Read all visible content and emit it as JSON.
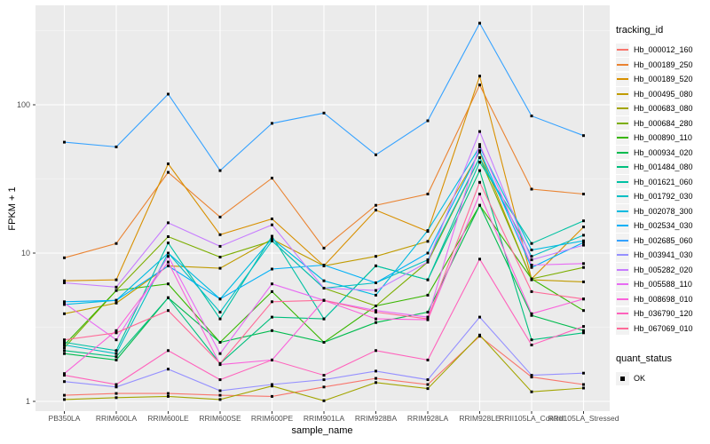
{
  "chart_data": {
    "type": "line",
    "title": "",
    "xlabel": "sample_name",
    "ylabel": "FPKM + 1",
    "y_scale": "log10",
    "y_ticks": [
      1,
      10,
      100
    ],
    "y_minor_ticks": [
      3.162,
      31.62,
      316.2
    ],
    "ylim": [
      0.87,
      440
    ],
    "grid": "white major and minor gridlines on grey panel",
    "legend_position": "right",
    "point_marker": "black-square",
    "categories": [
      "PB350LA",
      "RRIM600LA",
      "RRIM600LE",
      "RRIM600SE",
      "RRIM600PE",
      "RRIM901LA",
      "RRIM928BA",
      "RRIM928LA",
      "RRIM928LE",
      "RRII105LA_Control",
      "RRII105LA_Stressed"
    ],
    "series": [
      {
        "name": "Hb_000012_160",
        "color": "#F8766D",
        "values": [
          1.1,
          1.13,
          1.13,
          1.1,
          1.08,
          1.25,
          1.43,
          1.3,
          2.75,
          1.46,
          1.3
        ]
      },
      {
        "name": "Hb_000189_250",
        "color": "#EA8331",
        "values": [
          9.3,
          11.6,
          35,
          17.5,
          32,
          10.8,
          21,
          25,
          136,
          27,
          25
        ]
      },
      {
        "name": "Hb_000189_520",
        "color": "#D89000",
        "values": [
          6.5,
          6.6,
          40,
          13.3,
          17,
          8.2,
          19.5,
          14,
          156,
          6.7,
          15
        ]
      },
      {
        "name": "Hb_000495_080",
        "color": "#C09B00",
        "values": [
          3.9,
          4.6,
          8.2,
          7.9,
          12.4,
          8.2,
          9.5,
          12,
          48,
          6.6,
          6.4
        ]
      },
      {
        "name": "Hb_000683_080",
        "color": "#A3A500",
        "values": [
          1.03,
          1.06,
          1.08,
          1.03,
          1.27,
          1.01,
          1.34,
          1.22,
          2.8,
          1.16,
          1.23
        ]
      },
      {
        "name": "Hb_000684_280",
        "color": "#7CAE00",
        "values": [
          2.3,
          5.6,
          12.9,
          9.4,
          12.1,
          5.8,
          4.4,
          8.7,
          44,
          6.7,
          8.0
        ]
      },
      {
        "name": "Hb_000890_110",
        "color": "#39B600",
        "values": [
          2.4,
          5.6,
          6.2,
          2.5,
          5.5,
          2.5,
          4.4,
          5.2,
          21,
          6.7,
          4.1
        ]
      },
      {
        "name": "Hb_000934_020",
        "color": "#00BB4E",
        "values": [
          2.1,
          1.9,
          5.0,
          2.5,
          3.0,
          2.5,
          3.4,
          4.0,
          21,
          3.8,
          3.0
        ]
      },
      {
        "name": "Hb_001484_080",
        "color": "#00BF7D",
        "values": [
          2.2,
          2.0,
          5.0,
          1.8,
          3.7,
          3.6,
          8.2,
          6.6,
          36,
          2.6,
          2.9
        ]
      },
      {
        "name": "Hb_001621_060",
        "color": "#00C1A3",
        "values": [
          2.5,
          2.2,
          11.7,
          3.6,
          13,
          3.6,
          8.2,
          6.6,
          41,
          11.6,
          16.5
        ]
      },
      {
        "name": "Hb_001792_030",
        "color": "#00BFC4",
        "values": [
          2.4,
          2.1,
          10,
          4.0,
          12.1,
          5.8,
          6.3,
          9.0,
          44,
          9.5,
          13.2
        ]
      },
      {
        "name": "Hb_002078_300",
        "color": "#00BAE0",
        "values": [
          4.5,
          4.8,
          10,
          4.9,
          12.5,
          6.5,
          5.2,
          14.2,
          52,
          10.5,
          12.1
        ]
      },
      {
        "name": "Hb_002534_030",
        "color": "#00B0F6",
        "values": [
          4.7,
          4.8,
          8.2,
          4.9,
          7.8,
          8.3,
          6.3,
          10,
          49,
          8.0,
          11.8
        ]
      },
      {
        "name": "Hb_002685_060",
        "color": "#35A2FF",
        "values": [
          56,
          52,
          118,
          36,
          75,
          88,
          46,
          78,
          355,
          84,
          62
        ]
      },
      {
        "name": "Hb_003941_030",
        "color": "#9590FF",
        "values": [
          1.36,
          1.25,
          1.65,
          1.18,
          1.3,
          1.4,
          1.6,
          1.4,
          3.7,
          1.5,
          1.55
        ]
      },
      {
        "name": "Hb_005282_020",
        "color": "#C77CFF",
        "values": [
          6.3,
          5.9,
          16,
          11.1,
          15.5,
          5.8,
          5.6,
          8.7,
          66,
          9.0,
          11.3
        ]
      },
      {
        "name": "Hb_005588_110",
        "color": "#E76BF3",
        "values": [
          4.6,
          2.6,
          9.5,
          2.1,
          6.2,
          4.8,
          4.1,
          3.7,
          54,
          8.3,
          8.5
        ]
      },
      {
        "name": "Hb_008698_010",
        "color": "#FA62DB",
        "values": [
          1.54,
          3.0,
          8.7,
          1.77,
          1.9,
          4.8,
          3.6,
          3.55,
          25,
          3.9,
          4.9
        ]
      },
      {
        "name": "Hb_036790_120",
        "color": "#FF62BC",
        "values": [
          1.5,
          1.3,
          2.2,
          1.4,
          1.9,
          1.5,
          2.2,
          1.9,
          9.1,
          2.4,
          3.2
        ]
      },
      {
        "name": "Hb_067069_010",
        "color": "#FF6A98",
        "values": [
          2.6,
          2.9,
          4.1,
          1.8,
          4.7,
          4.8,
          4.0,
          3.6,
          30,
          5.5,
          4.9
        ]
      }
    ]
  },
  "legend": {
    "tracking_title": "tracking_id",
    "quant_title": "quant_status",
    "quant_value": "OK",
    "quant_marker": "black-square",
    "key_background": "#F2F2F2"
  },
  "panel": {
    "background": "#EBEBEB",
    "gridline_color": "#FFFFFF"
  },
  "axis": {
    "tick_label_color": "#4D4D4D",
    "tick_color": "#333333"
  }
}
